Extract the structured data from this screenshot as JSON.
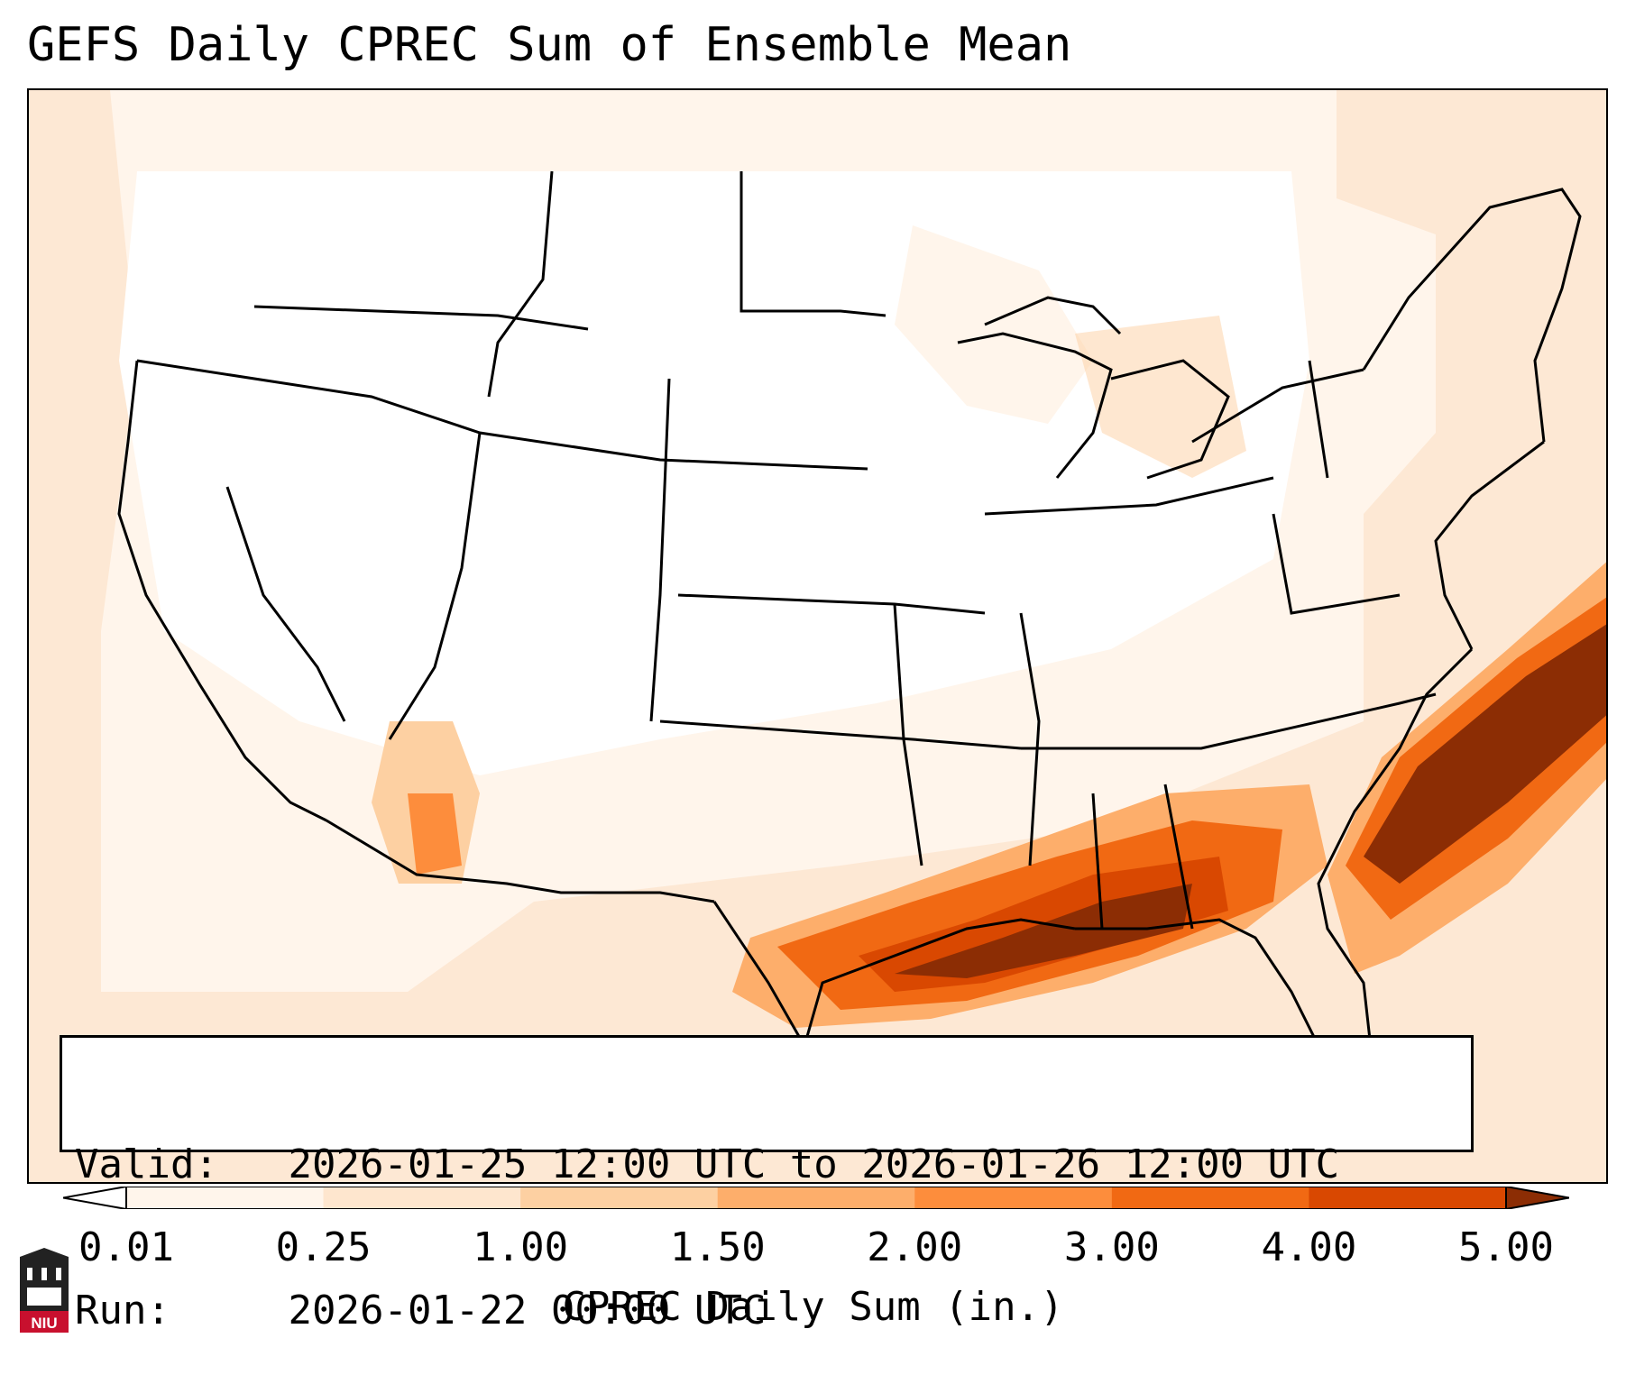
{
  "title": "GEFS Daily CPREC Sum of Ensemble Mean",
  "info": {
    "valid_label": "Valid:",
    "valid_value": "2026-01-25 12:00 UTC to 2026-01-26 12:00 UTC",
    "run_label": "Run:",
    "run_value": "2026-01-22 00:00 UTC"
  },
  "colorbar": {
    "title": "CPREC Daily Sum (in.)",
    "ticks": [
      "0.01",
      "0.25",
      "1.00",
      "1.50",
      "2.00",
      "3.00",
      "4.00",
      "5.00"
    ],
    "colors": [
      "#fff5eb",
      "#fee6ce",
      "#fdd0a2",
      "#fdae6b",
      "#fd8d3c",
      "#f16913",
      "#d94801",
      "#8c2d04"
    ],
    "extend": "both"
  },
  "colors": {
    "background_light": "#fde8d4",
    "heavy": "#8c2d04",
    "border": "#000000"
  },
  "logo": {
    "text": "NIU"
  }
}
